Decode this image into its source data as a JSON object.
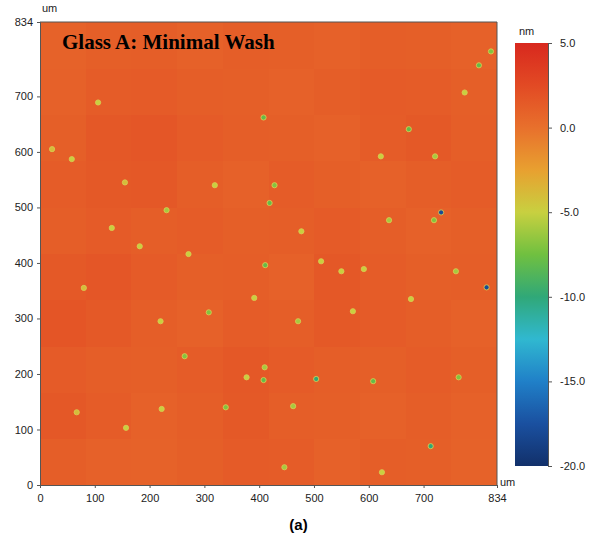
{
  "chart_data": {
    "type": "heatmap",
    "title": "Glass A: Minimal Wash",
    "caption": "(a)",
    "xlabel": "um",
    "ylabel": "um",
    "xlim": [
      0,
      834
    ],
    "ylim": [
      0,
      834
    ],
    "xticks": [
      0,
      100,
      200,
      300,
      400,
      500,
      600,
      700,
      834
    ],
    "yticks": [
      0,
      100,
      200,
      300,
      400,
      500,
      600,
      700,
      834
    ],
    "grid": false,
    "cells": [
      [
        1.2,
        1.0,
        0.9,
        1.1,
        1.4,
        1.3,
        1.0,
        1.2,
        1.1,
        0.9
      ],
      [
        1.6,
        1.3,
        1.0,
        1.2,
        1.5,
        1.2,
        1.1,
        1.0,
        1.2,
        1.0
      ],
      [
        1.4,
        1.2,
        1.1,
        1.3,
        1.6,
        1.4,
        1.2,
        1.1,
        1.3,
        1.1
      ],
      [
        1.8,
        1.5,
        1.2,
        1.0,
        1.3,
        1.2,
        1.5,
        1.4,
        1.2,
        1.0
      ],
      [
        1.5,
        1.7,
        1.4,
        1.1,
        1.2,
        1.0,
        1.6,
        1.3,
        1.1,
        1.2
      ],
      [
        1.2,
        1.4,
        1.2,
        1.3,
        1.1,
        1.2,
        1.4,
        1.2,
        1.0,
        1.1
      ],
      [
        1.3,
        1.5,
        1.6,
        1.2,
        1.0,
        1.3,
        1.1,
        1.0,
        1.2,
        1.3
      ],
      [
        1.1,
        1.6,
        1.7,
        1.4,
        1.2,
        1.1,
        1.0,
        1.3,
        1.5,
        1.2
      ],
      [
        1.0,
        1.3,
        1.4,
        1.2,
        1.1,
        1.0,
        1.2,
        1.4,
        1.3,
        1.1
      ],
      [
        0.9,
        1.1,
        1.2,
        1.0,
        1.2,
        1.1,
        1.0,
        1.2,
        1.1,
        1.0
      ]
    ],
    "pits": {
      "x": [
        732,
        815,
        713,
        608,
        504,
        408,
        410,
        264,
        339,
        157,
        411,
        308,
        471,
        419,
        391,
        591,
        637,
        719,
        673,
        721,
        622,
        408,
        428,
        231,
        131,
        106,
        155,
        462,
        377,
        446,
        624,
        764,
        759,
        801,
        823,
        775,
        550,
        182,
        80,
        22,
        58,
        513,
        477,
        319,
        271,
        220,
        571,
        677,
        67,
        222
      ],
      "y": [
        491,
        356,
        70,
        187,
        191,
        189,
        212,
        232,
        140,
        103,
        396,
        311,
        295,
        508,
        337,
        389,
        477,
        477,
        641,
        592,
        592,
        662,
        540,
        495,
        463,
        689,
        545,
        142,
        194,
        32,
        23,
        194,
        385,
        756,
        781,
        707,
        385,
        430,
        355,
        605,
        587,
        403,
        457,
        540,
        416,
        295,
        313,
        335,
        131,
        137
      ],
      "values": [
        -18,
        -18,
        -10,
        -8,
        -10,
        -8,
        -6,
        -7,
        -7,
        -5,
        -8,
        -7,
        -6,
        -8,
        -5,
        -5,
        -6,
        -7,
        -8,
        -6,
        -5,
        -8,
        -7,
        -6,
        -5,
        -5,
        -4,
        -6,
        -5,
        -6,
        -5,
        -7,
        -6,
        -8,
        -7,
        -5,
        -5,
        -5,
        -4,
        -4,
        -5,
        -5,
        -5,
        -5,
        -5,
        -5,
        -5,
        -5,
        -4,
        -5
      ]
    },
    "colorbar_label": "nm",
    "colorbar_range": [
      -20,
      5
    ],
    "colorbar_ticks": [
      {
        "value": 5,
        "label": "5.0"
      },
      {
        "value": 0,
        "label": "0.0"
      },
      {
        "value": -5,
        "label": "-5.0"
      },
      {
        "value": -10,
        "label": "-10.0"
      },
      {
        "value": -15,
        "label": "-15.0"
      },
      {
        "value": -20,
        "label": "-20.0"
      }
    ]
  }
}
